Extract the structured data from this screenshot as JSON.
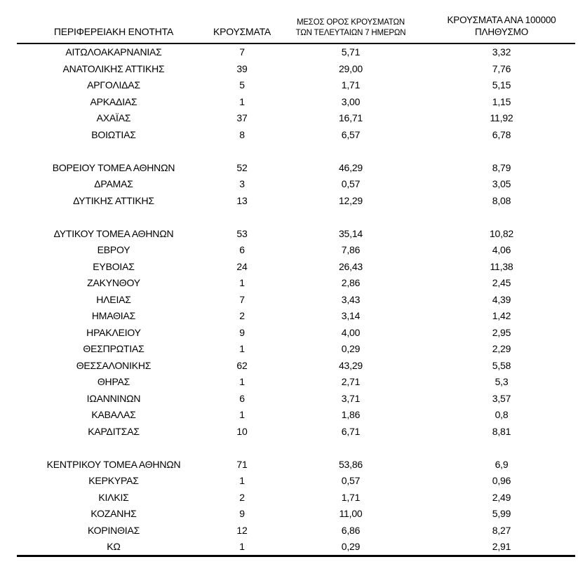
{
  "document": {
    "background": "#ffffff",
    "text_color": "#000000"
  },
  "table": {
    "columns": [
      {
        "id": "region",
        "label": "ΠΕΡΙΦΕΡΕΙΑΚΗ ΕΝΟΤΗΤΑ",
        "lines": [
          "ΠΕΡΙΦΕΡΕΙΑΚΗ ΕΝΟΤΗΤΑ"
        ]
      },
      {
        "id": "cases",
        "label": "ΚΡΟΥΣΜΑΤΑ",
        "lines": [
          "ΚΡΟΥΣΜΑΤΑ"
        ]
      },
      {
        "id": "avg7",
        "label": "ΜΕΣΟΣ ΟΡΟΣ ΚΡΟΥΣΜΑΤΩΝ ΤΩΝ ΤΕΛΕΥΤΑΙΩΝ 7 ΗΜΕΡΩΝ",
        "lines": [
          "ΜΕΣΟΣ ΟΡΟΣ ΚΡΟΥΣΜΑΤΩΝ",
          "ΤΩΝ ΤΕΛΕΥΤΑΙΩΝ 7 ΗΜΕΡΩΝ"
        ]
      },
      {
        "id": "per100k",
        "label": "ΚΡΟΥΣΜΑΤΑ ΑΝΑ 100000 ΠΛΗΘΥΣΜΟ",
        "lines": [
          "ΚΡΟΥΣΜΑΤΑ ΑΝΑ 100000",
          "ΠΛΗΘΥΣΜΟ"
        ]
      }
    ],
    "rows": [
      [
        "ΑΙΤΩΛΟΑΚΑΡΝΑΝΙΑΣ",
        "7",
        "5,71",
        "3,32"
      ],
      [
        "ΑΝΑΤΟΛΙΚΗΣ ΑΤΤΙΚΗΣ",
        "39",
        "29,00",
        "7,76"
      ],
      [
        "ΑΡΓΟΛΙΔΑΣ",
        "5",
        "1,71",
        "5,15"
      ],
      [
        "ΑΡΚΑΔΙΑΣ",
        "1",
        "3,00",
        "1,15"
      ],
      [
        "ΑΧΑΪΑΣ",
        "37",
        "16,71",
        "11,92"
      ],
      [
        "ΒΟΙΩΤΙΑΣ",
        "8",
        "6,57",
        "6,78"
      ],
      [],
      [
        "ΒΟΡΕΙΟΥ ΤΟΜΕΑ ΑΘΗΝΩΝ",
        "52",
        "46,29",
        "8,79"
      ],
      [
        "ΔΡΑΜΑΣ",
        "3",
        "0,57",
        "3,05"
      ],
      [
        "ΔΥΤΙΚΗΣ ΑΤΤΙΚΗΣ",
        "13",
        "12,29",
        "8,08"
      ],
      [],
      [
        "ΔΥΤΙΚΟΥ ΤΟΜΕΑ ΑΘΗΝΩΝ",
        "53",
        "35,14",
        "10,82"
      ],
      [
        "ΕΒΡΟΥ",
        "6",
        "7,86",
        "4,06"
      ],
      [
        "ΕΥΒΟΙΑΣ",
        "24",
        "26,43",
        "11,38"
      ],
      [
        "ΖΑΚΥΝΘΟΥ",
        "1",
        "2,86",
        "2,45"
      ],
      [
        "ΗΛΕΙΑΣ",
        "7",
        "3,43",
        "4,39"
      ],
      [
        "ΗΜΑΘΙΑΣ",
        "2",
        "3,14",
        "1,42"
      ],
      [
        "ΗΡΑΚΛΕΙΟΥ",
        "9",
        "4,00",
        "2,95"
      ],
      [
        "ΘΕΣΠΡΩΤΙΑΣ",
        "1",
        "0,29",
        "2,29"
      ],
      [
        "ΘΕΣΣΑΛΟΝΙΚΗΣ",
        "62",
        "43,29",
        "5,58"
      ],
      [
        "ΘΗΡΑΣ",
        "1",
        "2,71",
        "5,3"
      ],
      [
        "ΙΩΑΝΝΙΝΩΝ",
        "6",
        "3,71",
        "3,57"
      ],
      [
        "ΚΑΒΑΛΑΣ",
        "1",
        "1,86",
        "0,8"
      ],
      [
        "ΚΑΡΔΙΤΣΑΣ",
        "10",
        "6,71",
        "8,81"
      ],
      [],
      [
        "ΚΕΝΤΡΙΚΟΥ ΤΟΜΕΑ ΑΘΗΝΩΝ",
        "71",
        "53,86",
        "6,9"
      ],
      [
        "ΚΕΡΚΥΡΑΣ",
        "1",
        "0,57",
        "0,96"
      ],
      [
        "ΚΙΛΚΙΣ",
        "2",
        "1,71",
        "2,49"
      ],
      [
        "ΚΟΖΑΝΗΣ",
        "9",
        "11,00",
        "5,99"
      ],
      [
        "ΚΟΡΙΝΘΙΑΣ",
        "12",
        "6,86",
        "8,27"
      ],
      [
        "ΚΩ",
        "1",
        "0,29",
        "2,91"
      ]
    ]
  }
}
